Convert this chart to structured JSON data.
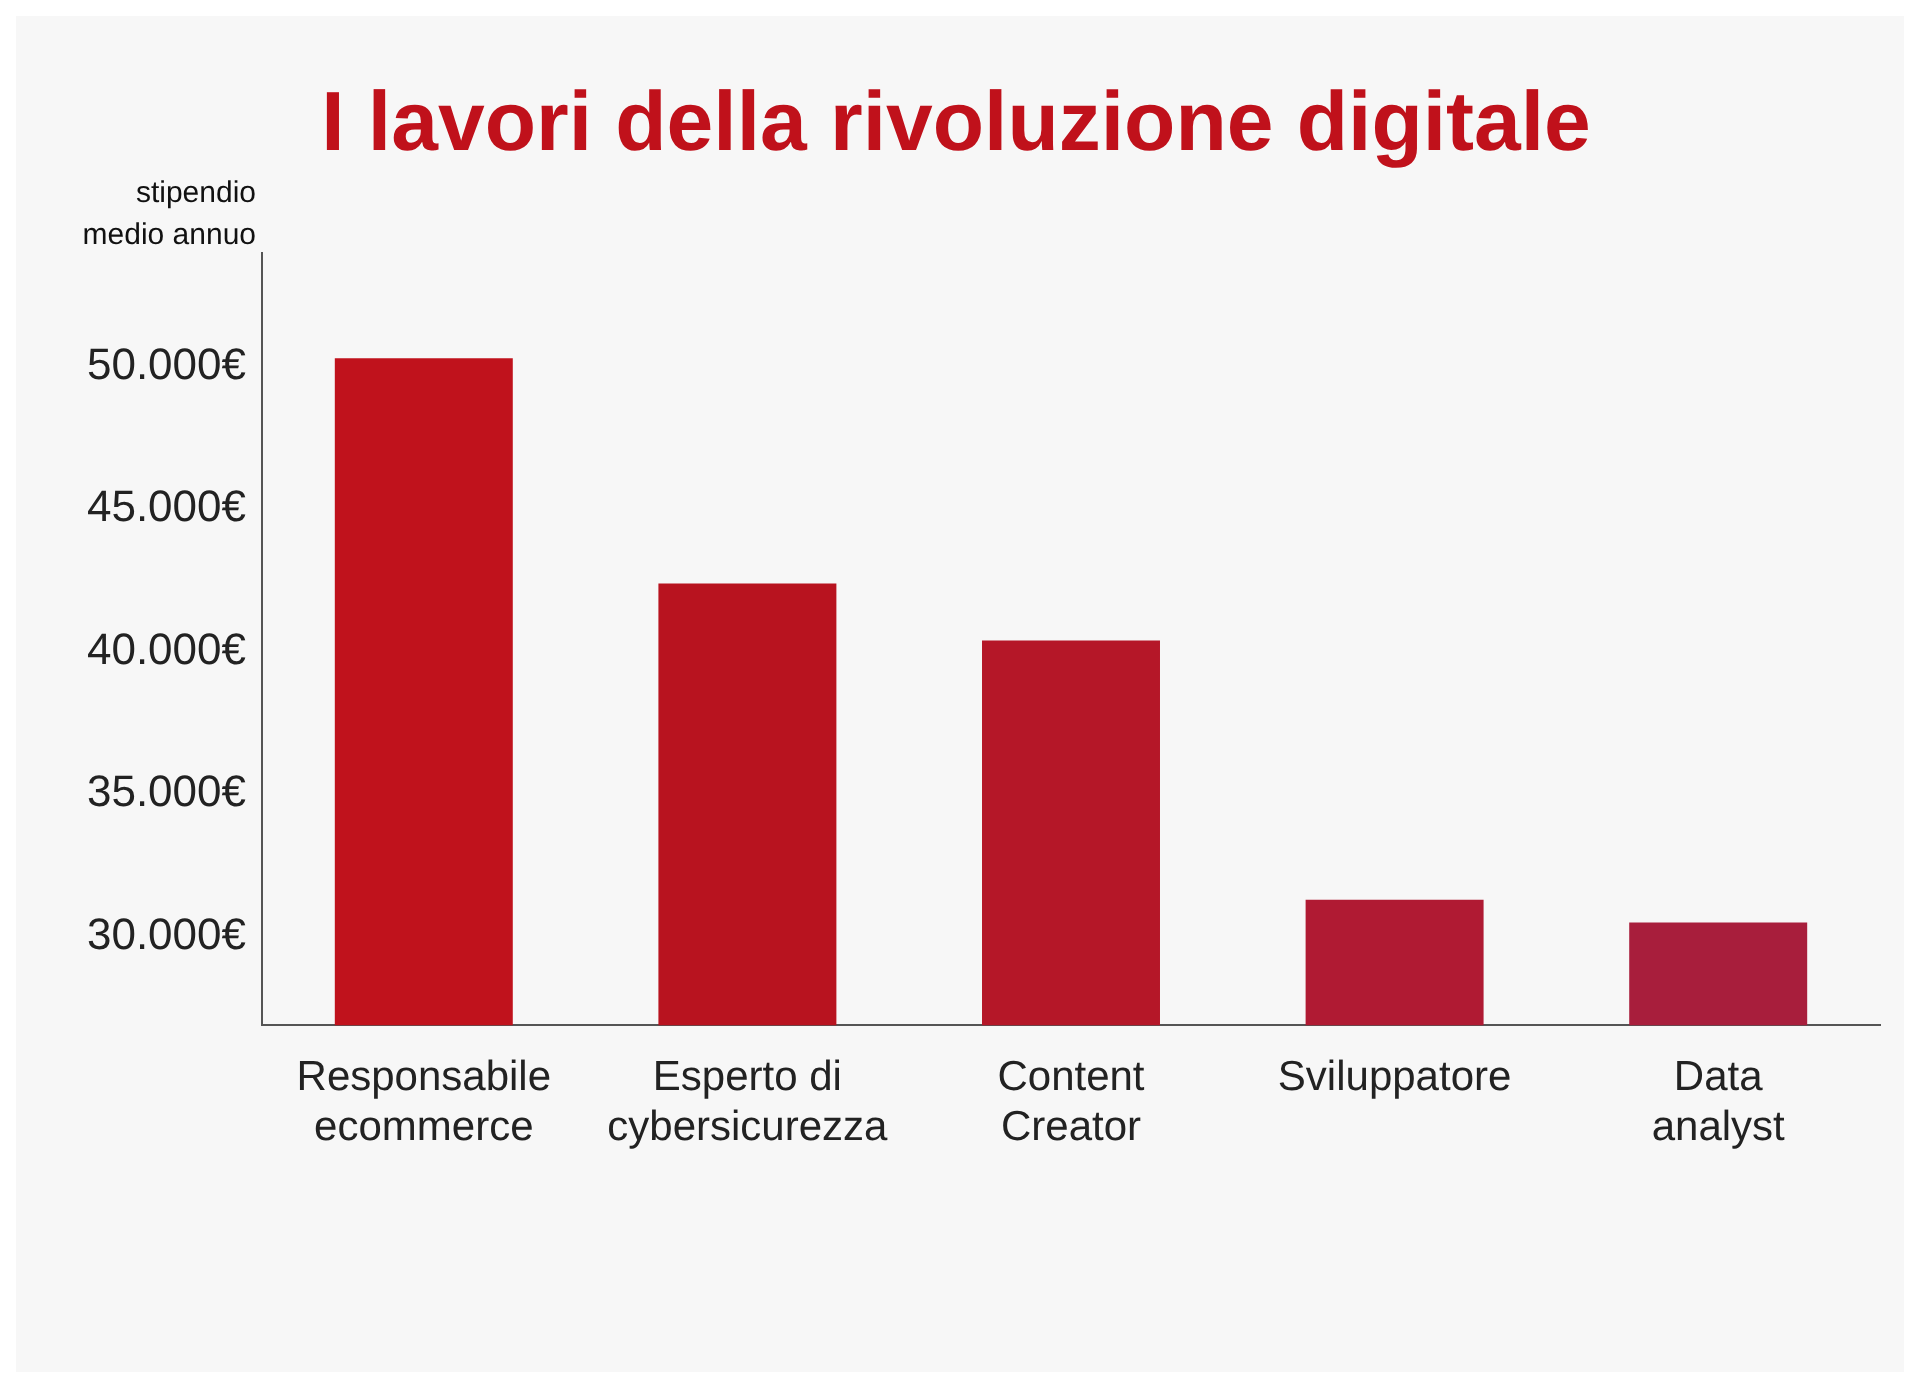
{
  "chart_data": {
    "type": "bar",
    "title": "I lavori della rivoluzione digitale",
    "ylabel": "stipendio medio annuo",
    "categories": [
      "Responsabile ecommerce",
      "Esperto di cybersicurezza",
      "Content Creator",
      "Sviluppatore",
      "Data analyst"
    ],
    "values": [
      50300,
      42400,
      40400,
      31300,
      30500
    ],
    "colors": [
      "#c0121c",
      "#b8131f",
      "#b51728",
      "#b01a33",
      "#a81e3c"
    ],
    "ylim": [
      26900,
      54000
    ],
    "yticks": [
      {
        "value": 30000,
        "label": "30.000€"
      },
      {
        "value": 35000,
        "label": "35.000€"
      },
      {
        "value": 40000,
        "label": "40.000€"
      },
      {
        "value": 45000,
        "label": "45.000€"
      },
      {
        "value": 50000,
        "label": "50.000€"
      }
    ],
    "grid": false,
    "legend": false
  }
}
